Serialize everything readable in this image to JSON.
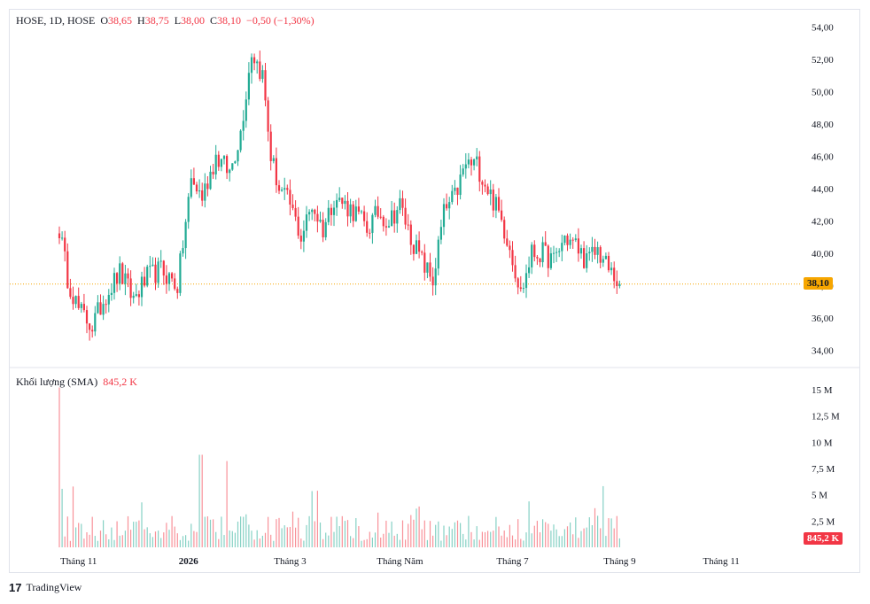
{
  "header": {
    "symbol": "HOSE, 1D, HOSE",
    "o_label": "O",
    "o_value": "38,65",
    "h_label": "H",
    "h_value": "38,75",
    "l_label": "L",
    "l_value": "38,00",
    "c_label": "C",
    "c_value": "38,10",
    "change": "−0,50 (−1,30%)"
  },
  "volume_header": {
    "label": "Khối lượng (SMA)",
    "value": "845,2 K"
  },
  "last_price_badge": "38,10",
  "last_volume_badge": "845,2 K",
  "brand": {
    "name": "TradingView",
    "logo_icon": "tradingview-logo-icon"
  },
  "colors": {
    "up": "#22ab94",
    "down": "#f23645",
    "badge_price": "#f7a600",
    "grid": "#e0e3eb"
  },
  "chart_data": [
    {
      "type": "candlestick",
      "title": "",
      "y_ticks": [
        "54,00",
        "52,00",
        "50,00",
        "48,00",
        "46,00",
        "44,00",
        "42,00",
        "40,00",
        "38,00",
        "36,00",
        "34,00"
      ],
      "y_tick_values": [
        54,
        52,
        50,
        48,
        46,
        44,
        42,
        40,
        38,
        36,
        34
      ],
      "ylim": [
        33,
        55
      ],
      "x_ticks": [
        "Tháng 11",
        "2026",
        "Tháng 3",
        "Tháng Năm",
        "Tháng 7",
        "Tháng 9",
        "Tháng 11"
      ],
      "x_tick_index": [
        7,
        47,
        84,
        124,
        165,
        204,
        241
      ],
      "x_bold": [
        false,
        true,
        false,
        false,
        false,
        false,
        false
      ],
      "last_close": 38.1,
      "anchors": [
        [
          0,
          41.5
        ],
        [
          3,
          38.5
        ],
        [
          7,
          36.5
        ],
        [
          12,
          35.5
        ],
        [
          17,
          37.5
        ],
        [
          22,
          38.8
        ],
        [
          27,
          37.2
        ],
        [
          32,
          38.5
        ],
        [
          37,
          39.0
        ],
        [
          43,
          38.0
        ],
        [
          48,
          44.5
        ],
        [
          52,
          43.5
        ],
        [
          57,
          46.0
        ],
        [
          62,
          45.0
        ],
        [
          66,
          47.5
        ],
        [
          70,
          52.5
        ],
        [
          74,
          51.0
        ],
        [
          77,
          46.0
        ],
        [
          80,
          44.0
        ],
        [
          84,
          43.0
        ],
        [
          88,
          41.0
        ],
        [
          92,
          43.0
        ],
        [
          96,
          41.5
        ],
        [
          100,
          43.5
        ],
        [
          104,
          43.0
        ],
        [
          108,
          42.5
        ],
        [
          112,
          41.5
        ],
        [
          116,
          42.5
        ],
        [
          120,
          42.0
        ],
        [
          124,
          43.0
        ],
        [
          128,
          41.0
        ],
        [
          132,
          39.5
        ],
        [
          136,
          38.3
        ],
        [
          140,
          42.5
        ],
        [
          144,
          43.5
        ],
        [
          148,
          45.5
        ],
        [
          152,
          45.5
        ],
        [
          156,
          44.0
        ],
        [
          160,
          42.5
        ],
        [
          164,
          40.5
        ],
        [
          168,
          37.5
        ],
        [
          172,
          40.0
        ],
        [
          176,
          40.0
        ],
        [
          180,
          39.5
        ],
        [
          184,
          41.0
        ],
        [
          188,
          40.5
        ],
        [
          192,
          39.5
        ],
        [
          196,
          40.2
        ],
        [
          200,
          39.0
        ],
        [
          204,
          38.1
        ]
      ],
      "n": 205
    },
    {
      "type": "bar",
      "title": "",
      "y_ticks": [
        "15 M",
        "12,5 M",
        "10 M",
        "7,5 M",
        "5 M",
        "2,5 M"
      ],
      "y_tick_values": [
        15,
        12.5,
        10,
        7.5,
        5,
        2.5
      ],
      "ylim": [
        0,
        16
      ],
      "unit": "M",
      "last_value": 0.845
    }
  ]
}
